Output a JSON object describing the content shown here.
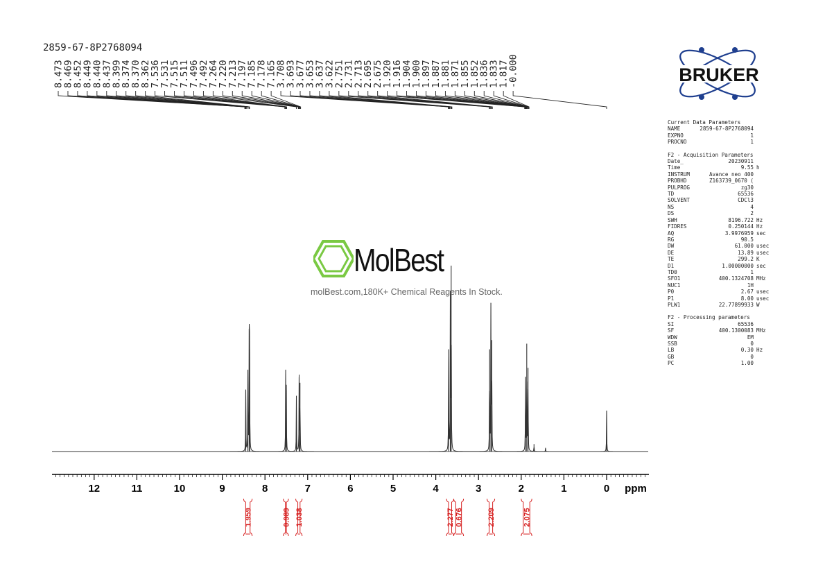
{
  "sample_name": "2859-67-8P2768094",
  "logo_text": "BRUKER",
  "watermark": {
    "name": "MolBest",
    "subtitle": "molBest.com,180K+ Chemical Reagents In Stock.",
    "color": "#7ac943"
  },
  "parameters": {
    "sections": [
      {
        "title": "Current Data Parameters",
        "rows": [
          {
            "key": "NAME",
            "value": "2859-67-8P2768094",
            "unit": ""
          },
          {
            "key": "EXPNO",
            "value": "1",
            "unit": ""
          },
          {
            "key": "PROCNO",
            "value": "1",
            "unit": ""
          }
        ]
      },
      {
        "title": "F2 - Acquisition Parameters",
        "rows": [
          {
            "key": "Date_",
            "value": "20230911",
            "unit": ""
          },
          {
            "key": "Time",
            "value": "9.55",
            "unit": "h"
          },
          {
            "key": "INSTRUM",
            "value": "Avance neo 400",
            "unit": ""
          },
          {
            "key": "PROBHD",
            "value": "Z163739_0670 (",
            "unit": ""
          },
          {
            "key": "PULPROG",
            "value": "zg30",
            "unit": ""
          },
          {
            "key": "TD",
            "value": "65536",
            "unit": ""
          },
          {
            "key": "SOLVENT",
            "value": "CDCl3",
            "unit": ""
          },
          {
            "key": "NS",
            "value": "4",
            "unit": ""
          },
          {
            "key": "DS",
            "value": "2",
            "unit": ""
          },
          {
            "key": "SWH",
            "value": "8196.722",
            "unit": "Hz"
          },
          {
            "key": "FIDRES",
            "value": "0.250144",
            "unit": "Hz"
          },
          {
            "key": "AQ",
            "value": "3.9976959",
            "unit": "sec"
          },
          {
            "key": "RG",
            "value": "90.5",
            "unit": ""
          },
          {
            "key": "DW",
            "value": "61.000",
            "unit": "usec"
          },
          {
            "key": "DE",
            "value": "13.89",
            "unit": "usec"
          },
          {
            "key": "TE",
            "value": "299.2",
            "unit": "K"
          },
          {
            "key": "D1",
            "value": "1.00000000",
            "unit": "sec"
          },
          {
            "key": "TD0",
            "value": "1",
            "unit": ""
          },
          {
            "key": "SFO1",
            "value": "400.1324708",
            "unit": "MHz"
          },
          {
            "key": "NUC1",
            "value": "1H",
            "unit": ""
          },
          {
            "key": "P0",
            "value": "2.67",
            "unit": "usec"
          },
          {
            "key": "P1",
            "value": "8.00",
            "unit": "usec"
          },
          {
            "key": "PLW1",
            "value": "22.77899933",
            "unit": "W"
          }
        ]
      },
      {
        "title": "F2 - Processing parameters",
        "rows": [
          {
            "key": "SI",
            "value": "65536",
            "unit": ""
          },
          {
            "key": "SF",
            "value": "400.1300083",
            "unit": "MHz"
          },
          {
            "key": "WDW",
            "value": "EM",
            "unit": ""
          },
          {
            "key": "SSB",
            "value": "0",
            "unit": ""
          },
          {
            "key": "LB",
            "value": "0.30",
            "unit": "Hz"
          },
          {
            "key": "GB",
            "value": "0",
            "unit": ""
          },
          {
            "key": "PC",
            "value": "1.00",
            "unit": ""
          }
        ]
      }
    ]
  },
  "chart_data": {
    "type": "line",
    "xlabel": "ppm",
    "xlim": [
      13.0,
      -1.0
    ],
    "x_ticks": [
      12,
      11,
      10,
      9,
      8,
      7,
      6,
      5,
      4,
      3,
      2,
      1,
      0
    ],
    "peak_labels": [
      "8.473",
      "8.469",
      "8.452",
      "8.449",
      "8.440",
      "8.437",
      "8.399",
      "8.374",
      "8.370",
      "8.362",
      "7.536",
      "7.531",
      "7.515",
      "7.511",
      "7.496",
      "7.492",
      "7.264",
      "7.220",
      "7.213",
      "7.197",
      "7.185",
      "7.178",
      "7.165",
      "3.708",
      "3.693",
      "3.677",
      "3.653",
      "3.637",
      "3.622",
      "2.751",
      "2.731",
      "2.713",
      "2.695",
      "2.675",
      "1.920",
      "1.916",
      "1.904",
      "1.900",
      "1.897",
      "1.887",
      "1.881",
      "1.871",
      "1.855",
      "1.852",
      "1.836",
      "1.833",
      "1.817",
      "-0.000"
    ],
    "peaks": [
      {
        "ppm": 8.45,
        "height": 0.33
      },
      {
        "ppm": 8.4,
        "height": 0.44
      },
      {
        "ppm": 8.37,
        "height": 0.66
      },
      {
        "ppm": 8.36,
        "height": 0.55
      },
      {
        "ppm": 7.515,
        "height": 0.44
      },
      {
        "ppm": 7.5,
        "height": 0.33
      },
      {
        "ppm": 7.264,
        "height": 0.3
      },
      {
        "ppm": 7.2,
        "height": 0.4
      },
      {
        "ppm": 7.18,
        "height": 0.37
      },
      {
        "ppm": 3.7,
        "height": 0.55
      },
      {
        "ppm": 3.66,
        "height": 0.85
      },
      {
        "ppm": 3.64,
        "height": 1.0
      },
      {
        "ppm": 2.74,
        "height": 0.55
      },
      {
        "ppm": 2.71,
        "height": 0.8
      },
      {
        "ppm": 2.69,
        "height": 0.6
      },
      {
        "ppm": 1.9,
        "height": 0.4
      },
      {
        "ppm": 1.87,
        "height": 0.58
      },
      {
        "ppm": 1.84,
        "height": 0.45
      },
      {
        "ppm": 1.7,
        "height": 0.04
      },
      {
        "ppm": 1.43,
        "height": 0.02
      },
      {
        "ppm": 0.0,
        "height": 0.22
      }
    ],
    "integrals": [
      {
        "range": [
          8.5,
          8.3
        ],
        "value": "1.959"
      },
      {
        "range": [
          7.57,
          7.45
        ],
        "value": "0.989"
      },
      {
        "range": [
          7.28,
          7.13
        ],
        "value": "1.038"
      },
      {
        "range": [
          3.75,
          3.58
        ],
        "value": "2.277"
      },
      {
        "range": [
          3.58,
          3.35
        ],
        "value": "0.676"
      },
      {
        "range": [
          2.8,
          2.62
        ],
        "value": "2.209"
      },
      {
        "range": [
          2.0,
          1.75
        ],
        "value": "2.075"
      }
    ]
  }
}
